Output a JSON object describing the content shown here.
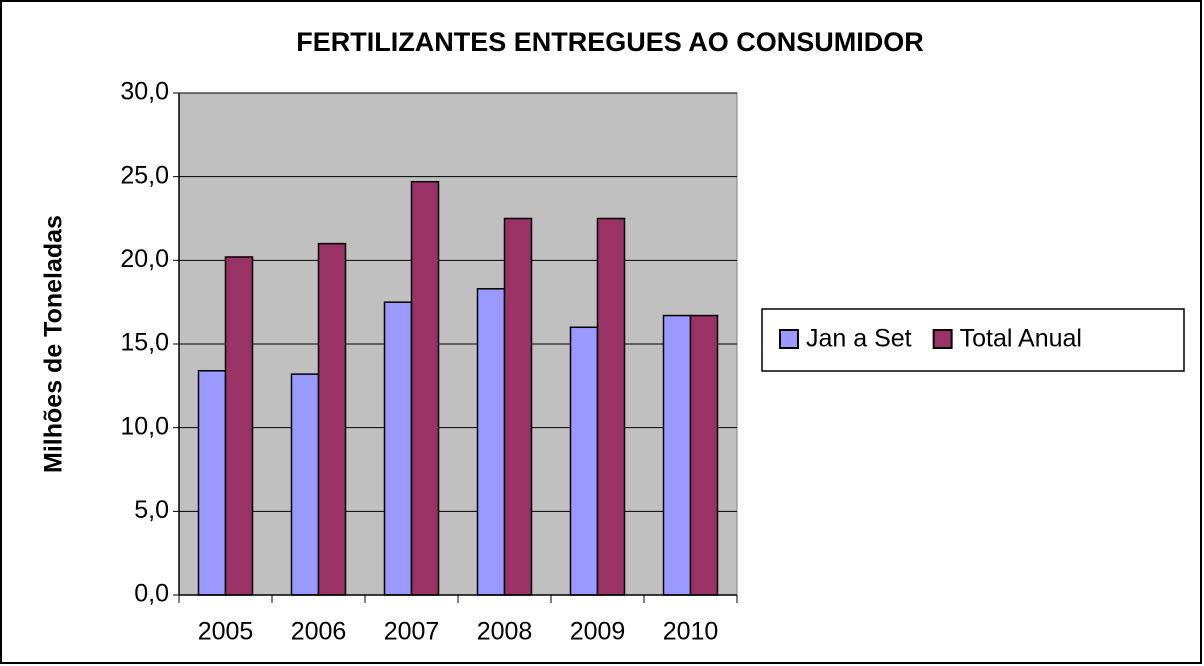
{
  "chart_data": {
    "type": "bar",
    "title": "FERTILIZANTES ENTREGUES AO CONSUMIDOR",
    "y_label": "Milhões de Toneladas",
    "categories": [
      "2005",
      "2006",
      "2007",
      "2008",
      "2009",
      "2010"
    ],
    "series": [
      {
        "name": "Jan a Set",
        "color": "#9999ff",
        "values": [
          13.4,
          13.2,
          17.5,
          18.3,
          16.0,
          16.7
        ]
      },
      {
        "name": "Total Anual",
        "color": "#993366",
        "values": [
          20.2,
          21.0,
          24.7,
          22.5,
          22.5,
          16.7
        ]
      }
    ],
    "ylim": [
      0,
      30
    ],
    "yticks": [
      {
        "value": 0,
        "label": "0,0"
      },
      {
        "value": 5,
        "label": "5,0"
      },
      {
        "value": 10,
        "label": "10,0"
      },
      {
        "value": 15,
        "label": "15,0"
      },
      {
        "value": 20,
        "label": "20,0"
      },
      {
        "value": 25,
        "label": "25,0"
      },
      {
        "value": 30,
        "label": "30,0"
      }
    ],
    "grid": true,
    "plot_background": "#c0c0c0",
    "legend": "right"
  }
}
